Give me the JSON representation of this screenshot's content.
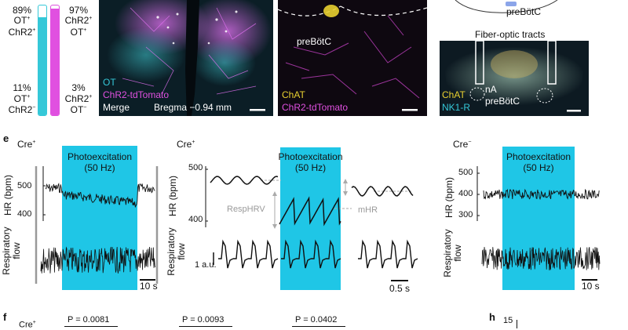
{
  "panel_top_left": {
    "top_pct_left": "89%",
    "top_label_left_1": "OT",
    "top_label_left_1_sup": "+",
    "top_label_left_2": "ChR2",
    "top_label_left_2_sup": "+",
    "top_pct_right": "97%",
    "top_label_right_1": "ChR2",
    "top_label_right_1_sup": "+",
    "top_label_right_2": "OT",
    "top_label_right_2_sup": "+",
    "bottom_pct_left": "11%",
    "bottom_label_left_1": "OT",
    "bottom_label_left_1_sup": "+",
    "bottom_label_left_2": "ChR2",
    "bottom_label_left_2_sup": "−",
    "bottom_pct_right": "3%",
    "bottom_label_right_1": "ChR2",
    "bottom_label_right_1_sup": "+",
    "bottom_label_right_2": "OT",
    "bottom_label_right_2_sup": "−",
    "bar_left_fill_fraction": 0.89,
    "bar_right_fill_fraction": 0.97,
    "bar_left_color": "#35c8d8",
    "bar_right_color": "#e050e0"
  },
  "micrograph_1": {
    "label_ot": "OT",
    "label_chr2": "ChR2-tdTomato",
    "label_merge": "Merge",
    "label_bregma": "Bregma −0.94 mm"
  },
  "micrograph_2": {
    "label_region": "preBötC",
    "label_chat": "ChAT",
    "label_chr2": "ChR2-tdTomato"
  },
  "schematic": {
    "label_prebotc": "preBötC"
  },
  "micrograph_3": {
    "title": "Fiber-optic tracts",
    "label_chat": "ChAT",
    "label_nk1r": "NK1-R",
    "label_na": "nA",
    "label_prebotc": "preBötC"
  },
  "panel_e": {
    "letter": "e",
    "left": {
      "genotype": "Cre",
      "genotype_sup": "+",
      "stim_title_1": "Photoexcitation",
      "stim_title_2": "(50 Hz)",
      "hr_ylabel": "HR (bpm)",
      "hr_ticks": [
        "500",
        "400"
      ],
      "resp_ylabel_1": "Respiratory",
      "resp_ylabel_2": "flow",
      "scalebar": "10 s"
    },
    "middle": {
      "genotype": "Cre",
      "genotype_sup": "+",
      "stim_title_1": "Photoexcitation",
      "stim_title_2": "(50 Hz)",
      "hr_ylabel": "HR (bpm)",
      "hr_ticks": [
        "500",
        "400"
      ],
      "resp_ylabel_1": "Respiratory",
      "resp_ylabel_2": "flow",
      "label_resphrv": "RespHRV",
      "label_mhr": "mHR",
      "label_au": "1 a.u.",
      "scalebar": "0.5 s"
    },
    "right": {
      "genotype": "Cre",
      "genotype_sup": "−",
      "stim_title_1": "Photoexcitation",
      "stim_title_2": "(50 Hz)",
      "hr_ylabel": "HR (bpm)",
      "hr_ticks": [
        "500",
        "400",
        "300"
      ],
      "resp_ylabel_1": "Respiratory",
      "resp_ylabel_2": "flow",
      "scalebar": "10 s"
    },
    "stim_color": "#1fc6e6"
  },
  "panel_f": {
    "letter": "f",
    "genotype": "Cre",
    "genotype_sup": "+",
    "p_values": [
      "P = 0.0081",
      "P = 0.0093",
      "P = 0.0402"
    ]
  },
  "panel_h": {
    "letter": "h",
    "tick": "15"
  }
}
